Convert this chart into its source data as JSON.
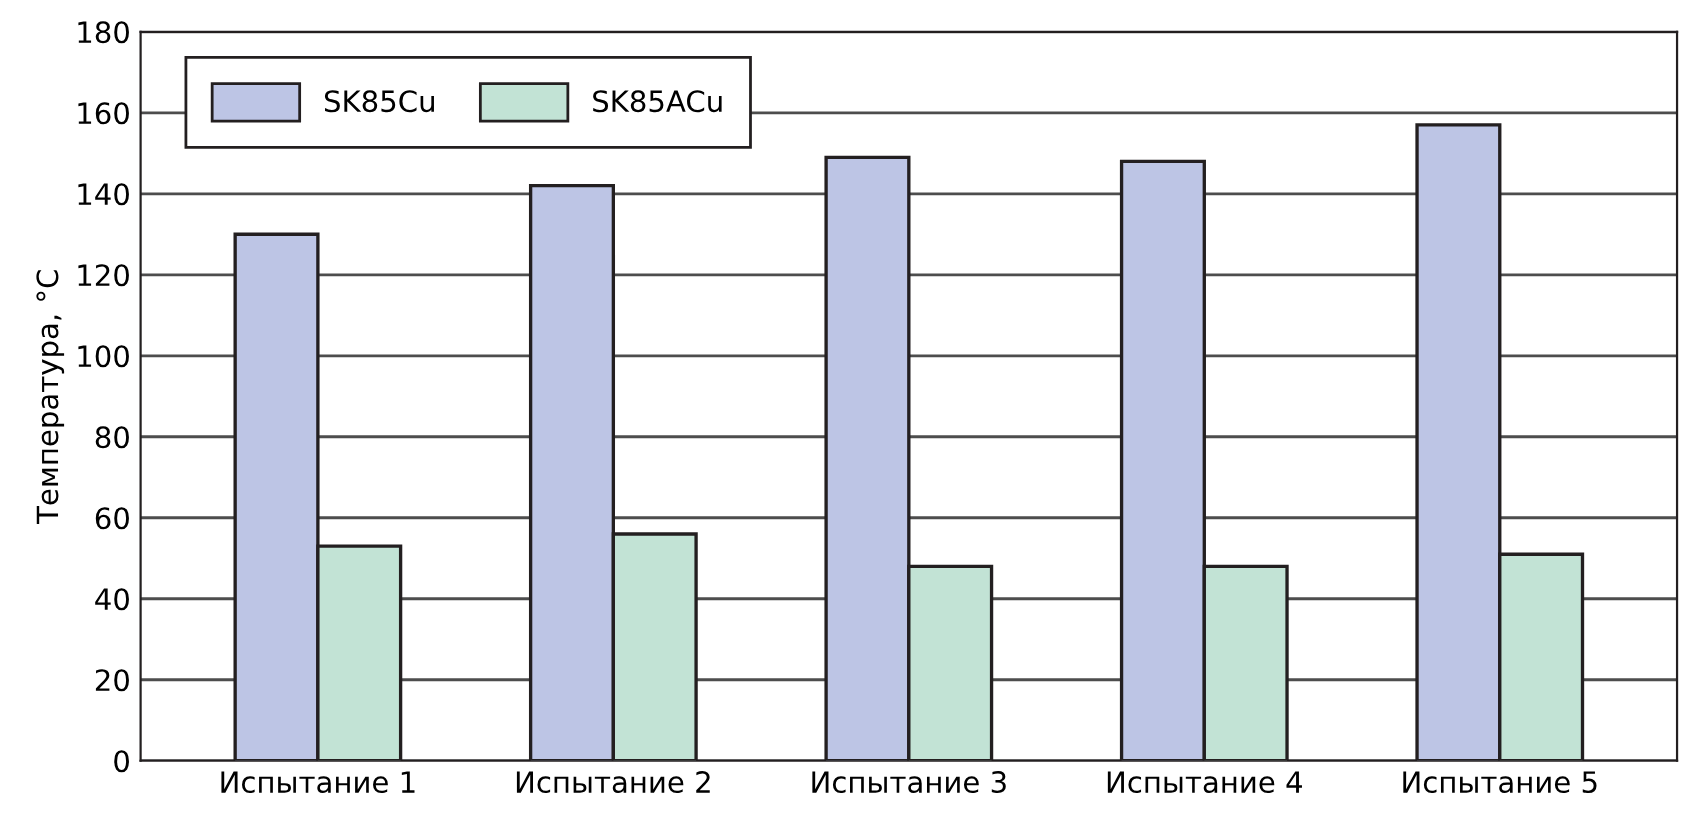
{
  "chart_data": {
    "type": "bar",
    "ylabel": "Температура, °C",
    "categories": [
      "Испытание 1",
      "Испытание 2",
      "Испытание 3",
      "Испытание 4",
      "Испытание 5"
    ],
    "series": [
      {
        "name": "SK85Cu",
        "color": "#bdc5e5",
        "values": [
          130,
          142,
          149,
          148,
          157
        ]
      },
      {
        "name": "SK85ACu",
        "color": "#c2e3d5",
        "values": [
          53,
          56,
          48,
          48,
          51
        ]
      }
    ],
    "ylim": [
      0,
      180
    ],
    "yticks": [
      0,
      20,
      40,
      60,
      80,
      100,
      120,
      140,
      160,
      180
    ],
    "grid": "y",
    "legend": "top left"
  }
}
